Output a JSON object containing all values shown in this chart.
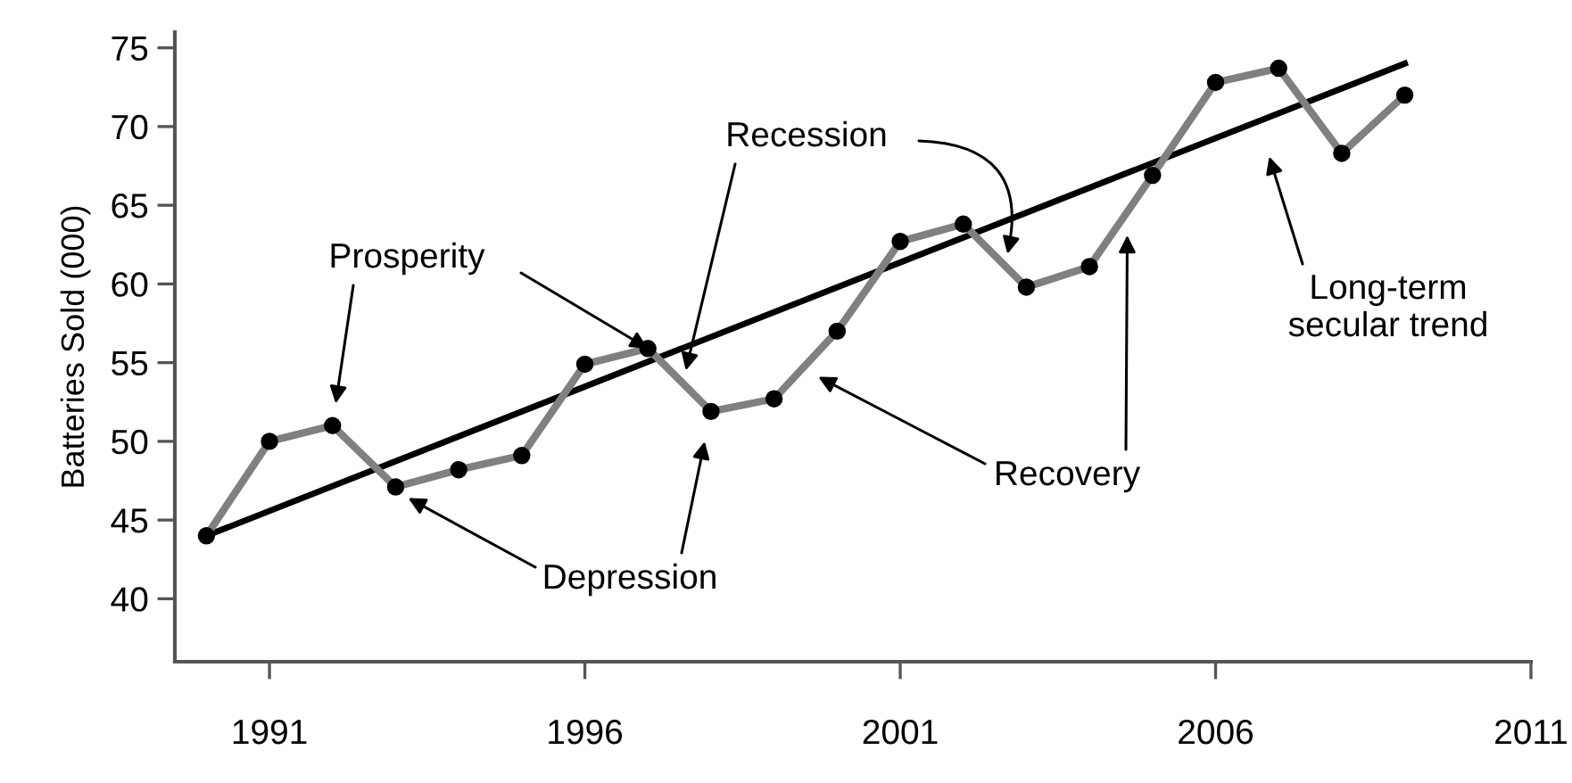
{
  "chart_data": {
    "type": "line",
    "ylabel": "Batteries Sold (000)",
    "xlim": [
      1989.5,
      2011
    ],
    "xticks": [
      1991,
      1996,
      2001,
      2006,
      2011
    ],
    "ylim": [
      36,
      76
    ],
    "yticks": [
      40,
      45,
      50,
      55,
      60,
      65,
      70,
      75
    ],
    "grid": false,
    "series": [
      {
        "type": "line",
        "color": "#808080",
        "marker": "circle",
        "x": [
          1990,
          1991,
          1992,
          1993,
          1994,
          1995,
          1996,
          1997,
          1998,
          1999,
          2000,
          2001,
          2002,
          2003,
          2004,
          2005,
          2006,
          2007,
          2008,
          2009
        ],
        "values": [
          44,
          50,
          51,
          47.1,
          48.2,
          49.1,
          54.9,
          55.9,
          51.9,
          52.7,
          57,
          62.7,
          63.8,
          59.8,
          61.1,
          66.9,
          72.8,
          73.7,
          68.3,
          72
        ]
      },
      {
        "type": "line",
        "color": "#000000",
        "x": [
          1990,
          2009
        ],
        "values": [
          44,
          74
        ]
      }
    ],
    "annotations": [
      {
        "text": "Prosperity",
        "x": 1997,
        "y": 55.9
      },
      "Recession",
      "Depression",
      "Recovery",
      "Long-term\nsecular trend"
    ]
  }
}
